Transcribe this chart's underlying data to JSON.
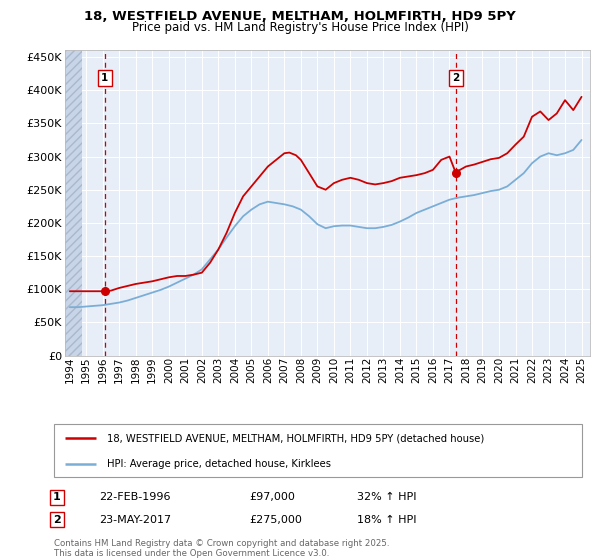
{
  "title_line1": "18, WESTFIELD AVENUE, MELTHAM, HOLMFIRTH, HD9 5PY",
  "title_line2": "Price paid vs. HM Land Registry's House Price Index (HPI)",
  "bg_color": "#e8eef8",
  "hatch_color": "#c8d0e0",
  "red_color": "#cc0000",
  "blue_color": "#7aaed6",
  "vline_color": "#cc0000",
  "grid_color": "#ffffff",
  "ylim": [
    0,
    460000
  ],
  "xlim_start": 1993.7,
  "xlim_end": 2025.5,
  "hatch_end_x": 1994.75,
  "ytick_values": [
    0,
    50000,
    100000,
    150000,
    200000,
    250000,
    300000,
    350000,
    400000,
    450000
  ],
  "ytick_labels": [
    "£0",
    "£50K",
    "£100K",
    "£150K",
    "£200K",
    "£250K",
    "£300K",
    "£350K",
    "£400K",
    "£450K"
  ],
  "xtick_values": [
    1994,
    1995,
    1996,
    1997,
    1998,
    1999,
    2000,
    2001,
    2002,
    2003,
    2004,
    2005,
    2006,
    2007,
    2008,
    2009,
    2010,
    2011,
    2012,
    2013,
    2014,
    2015,
    2016,
    2017,
    2018,
    2019,
    2020,
    2021,
    2022,
    2023,
    2024,
    2025
  ],
  "legend_line1": "18, WESTFIELD AVENUE, MELTHAM, HOLMFIRTH, HD9 5PY (detached house)",
  "legend_line2": "HPI: Average price, detached house, Kirklees",
  "marker1_x": 1996.13,
  "marker1_y": 97000,
  "marker1_label": "1",
  "marker1_date": "22-FEB-1996",
  "marker1_price": "£97,000",
  "marker1_hpi": "32% ↑ HPI",
  "marker2_x": 2017.39,
  "marker2_y": 275000,
  "marker2_label": "2",
  "marker2_date": "23-MAY-2017",
  "marker2_price": "£275,000",
  "marker2_hpi": "18% ↑ HPI",
  "footer_text": "Contains HM Land Registry data © Crown copyright and database right 2025.\nThis data is licensed under the Open Government Licence v3.0.",
  "red_series_x": [
    1994.0,
    1994.5,
    1995.0,
    1995.5,
    1996.0,
    1996.13,
    1996.5,
    1997.0,
    1997.5,
    1998.0,
    1998.5,
    1999.0,
    1999.5,
    2000.0,
    2000.5,
    2001.0,
    2001.5,
    2002.0,
    2002.5,
    2003.0,
    2003.5,
    2004.0,
    2004.5,
    2005.0,
    2005.5,
    2006.0,
    2006.5,
    2007.0,
    2007.3,
    2007.7,
    2008.0,
    2008.5,
    2009.0,
    2009.5,
    2010.0,
    2010.5,
    2011.0,
    2011.5,
    2012.0,
    2012.5,
    2013.0,
    2013.5,
    2014.0,
    2014.5,
    2015.0,
    2015.5,
    2016.0,
    2016.5,
    2017.0,
    2017.39,
    2017.5,
    2018.0,
    2018.5,
    2019.0,
    2019.5,
    2020.0,
    2020.5,
    2021.0,
    2021.5,
    2022.0,
    2022.5,
    2023.0,
    2023.5,
    2024.0,
    2024.5,
    2025.0
  ],
  "red_series_y": [
    97000,
    97000,
    97000,
    97000,
    97000,
    97000,
    98000,
    102000,
    105000,
    108000,
    110000,
    112000,
    115000,
    118000,
    120000,
    120000,
    122000,
    125000,
    140000,
    160000,
    185000,
    215000,
    240000,
    255000,
    270000,
    285000,
    295000,
    305000,
    306000,
    302000,
    295000,
    275000,
    255000,
    250000,
    260000,
    265000,
    268000,
    265000,
    260000,
    258000,
    260000,
    263000,
    268000,
    270000,
    272000,
    275000,
    280000,
    295000,
    300000,
    275000,
    278000,
    285000,
    288000,
    292000,
    296000,
    298000,
    305000,
    318000,
    330000,
    360000,
    368000,
    355000,
    365000,
    385000,
    370000,
    390000
  ],
  "blue_series_x": [
    1994.0,
    1994.5,
    1995.0,
    1995.5,
    1996.0,
    1996.5,
    1997.0,
    1997.5,
    1998.0,
    1998.5,
    1999.0,
    1999.5,
    2000.0,
    2000.5,
    2001.0,
    2001.5,
    2002.0,
    2002.5,
    2003.0,
    2003.5,
    2004.0,
    2004.5,
    2005.0,
    2005.5,
    2006.0,
    2006.5,
    2007.0,
    2007.5,
    2008.0,
    2008.5,
    2009.0,
    2009.5,
    2010.0,
    2010.5,
    2011.0,
    2011.5,
    2012.0,
    2012.5,
    2013.0,
    2013.5,
    2014.0,
    2014.5,
    2015.0,
    2015.5,
    2016.0,
    2016.5,
    2017.0,
    2017.5,
    2018.0,
    2018.5,
    2019.0,
    2019.5,
    2020.0,
    2020.5,
    2021.0,
    2021.5,
    2022.0,
    2022.5,
    2023.0,
    2023.5,
    2024.0,
    2024.5,
    2025.0
  ],
  "blue_series_y": [
    73000,
    73000,
    74000,
    75000,
    76000,
    78000,
    80000,
    83000,
    87000,
    91000,
    95000,
    99000,
    104000,
    110000,
    116000,
    122000,
    130000,
    145000,
    160000,
    178000,
    195000,
    210000,
    220000,
    228000,
    232000,
    230000,
    228000,
    225000,
    220000,
    210000,
    198000,
    192000,
    195000,
    196000,
    196000,
    194000,
    192000,
    192000,
    194000,
    197000,
    202000,
    208000,
    215000,
    220000,
    225000,
    230000,
    235000,
    238000,
    240000,
    242000,
    245000,
    248000,
    250000,
    255000,
    265000,
    275000,
    290000,
    300000,
    305000,
    302000,
    305000,
    310000,
    325000
  ]
}
